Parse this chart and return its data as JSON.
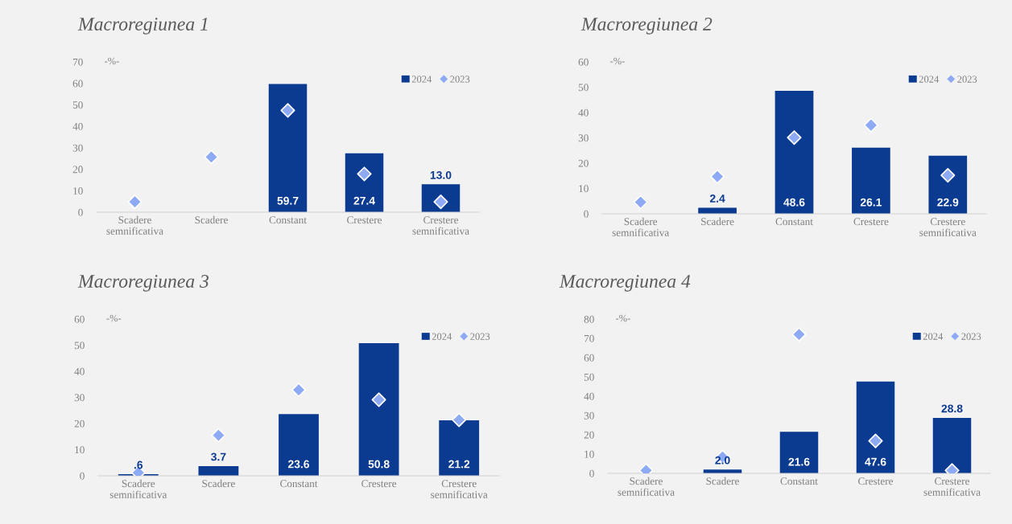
{
  "chart_data": [
    {
      "type": "bar",
      "title": "Macroregiunea 1",
      "ylabel": "-%-",
      "categories": [
        "Scadere\nsemnificativa",
        "Scadere",
        "Constant",
        "Crestere",
        "Crestere\nsemnificativa"
      ],
      "ylim": [
        0,
        70
      ],
      "yticks": [
        0,
        10,
        20,
        30,
        40,
        50,
        60,
        70
      ],
      "legend": "top right",
      "grid": false,
      "marker": "diamond",
      "series": [
        {
          "name": "2024",
          "type": "bar",
          "color": "#0b3a91",
          "values": [
            null,
            null,
            59.7,
            27.4,
            13.0
          ],
          "value_labels": [
            null,
            null,
            "59.7",
            "27.4",
            "13.0"
          ]
        },
        {
          "name": "2023",
          "type": "scatter",
          "color": "#8eaaf5",
          "values": [
            4.8,
            25.7,
            47.4,
            17.8,
            4.8
          ]
        }
      ]
    },
    {
      "type": "bar",
      "title": "Macroregiunea 2",
      "ylabel": "-%-",
      "categories": [
        "Scadere\nsemnificativa",
        "Scadere",
        "Constant",
        "Crestere",
        "Crestere\nsemnificativa"
      ],
      "ylim": [
        0,
        60
      ],
      "yticks": [
        0,
        10,
        20,
        30,
        40,
        50,
        60
      ],
      "legend": "top right",
      "grid": false,
      "marker": "diamond",
      "series": [
        {
          "name": "2024",
          "type": "bar",
          "color": "#0b3a91",
          "values": [
            null,
            2.4,
            48.6,
            26.1,
            22.9
          ],
          "value_labels": [
            null,
            "2.4",
            "48.6",
            "26.1",
            "22.9"
          ]
        },
        {
          "name": "2023",
          "type": "scatter",
          "color": "#8eaaf5",
          "values": [
            4.6,
            14.7,
            30.1,
            35.0,
            15.2
          ]
        }
      ]
    },
    {
      "type": "bar",
      "title": "Macroregiunea 3",
      "ylabel": "-%-",
      "categories": [
        "Scadere\nsemnificativa",
        "Scadere",
        "Constant",
        "Crestere",
        "Crestere\nsemnificativa"
      ],
      "ylim": [
        0,
        60
      ],
      "yticks": [
        0,
        10,
        20,
        30,
        40,
        50,
        60
      ],
      "legend": "top right",
      "grid": false,
      "marker": "diamond",
      "series": [
        {
          "name": "2024",
          "type": "bar",
          "color": "#0b3a91",
          "values": [
            0.6,
            3.7,
            23.6,
            50.8,
            21.2
          ],
          "value_labels": [
            ".6",
            "3.7",
            "23.6",
            "50.8",
            "21.2"
          ]
        },
        {
          "name": "2023",
          "type": "scatter",
          "color": "#8eaaf5",
          "values": [
            1.2,
            15.5,
            32.9,
            29.1,
            21.4
          ]
        }
      ]
    },
    {
      "type": "bar",
      "title": "Macroregiunea 4",
      "ylabel": "-%-",
      "categories": [
        "Scadere\nsemnificativa",
        "Scadere",
        "Constant",
        "Crestere",
        "Crestere\nsemnificativa"
      ],
      "ylim": [
        0,
        80
      ],
      "yticks": [
        0,
        10,
        20,
        30,
        40,
        50,
        60,
        70,
        80
      ],
      "legend": "top right",
      "grid": false,
      "marker": "diamond",
      "series": [
        {
          "name": "2024",
          "type": "bar",
          "color": "#0b3a91",
          "values": [
            null,
            2.0,
            21.6,
            47.6,
            28.8
          ],
          "value_labels": [
            null,
            "2.0",
            "21.6",
            "47.6",
            "28.8"
          ]
        },
        {
          "name": "2023",
          "type": "scatter",
          "color": "#8eaaf5",
          "values": [
            1.5,
            8.5,
            72.0,
            16.8,
            1.5
          ]
        }
      ]
    }
  ]
}
